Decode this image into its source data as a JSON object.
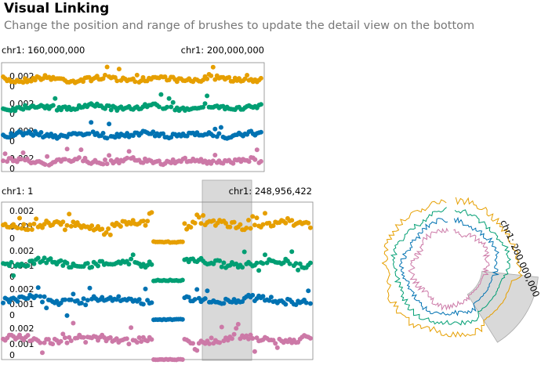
{
  "header": {
    "title": "Visual Linking",
    "subtitle": "Change the position and range of brushes to update the detail view on the bottom"
  },
  "colors": {
    "series": [
      "#e69f00",
      "#009e73",
      "#0072b2",
      "#cc79a7"
    ],
    "brush": "#cccccc",
    "axis": "#555555"
  },
  "chart_data": [
    {
      "type": "scatter",
      "view": "detail",
      "range_start_label": "chr1: 160,000,000",
      "range_end_label": "chr1: 200,000,000",
      "x_range": [
        160000000,
        200000000
      ],
      "rows": [
        {
          "color_index": 0,
          "ytick_labels": [
            "0.002",
            "0"
          ]
        },
        {
          "color_index": 1,
          "ytick_labels": [
            "0.002",
            "0"
          ]
        },
        {
          "color_index": 2,
          "ytick_labels": [
            "0.002",
            "0"
          ]
        },
        {
          "color_index": 3,
          "ytick_labels": [
            "0.002",
            "0"
          ]
        }
      ]
    },
    {
      "type": "scatter",
      "view": "overview",
      "range_start_label": "chr1: 1",
      "range_end_label": "chr1: 248,956,422",
      "x_range": [
        1,
        248956422
      ],
      "brush_range": [
        160000000,
        200000000
      ],
      "rows": [
        {
          "color_index": 0,
          "ytick_labels": [
            "0.002",
            "0.001",
            "0"
          ]
        },
        {
          "color_index": 1,
          "ytick_labels": [
            "0.002",
            "0.001",
            "0"
          ]
        },
        {
          "color_index": 2,
          "ytick_labels": [
            "0.002",
            "0.001",
            "0"
          ]
        },
        {
          "color_index": 3,
          "ytick_labels": [
            "0.002",
            "0.001",
            "0"
          ]
        }
      ]
    },
    {
      "type": "line",
      "view": "circular",
      "brush_label": "chr1: 200,000,000",
      "brush_range": [
        160000000,
        200000000
      ],
      "rings": [
        {
          "color_index": 0
        },
        {
          "color_index": 1
        },
        {
          "color_index": 2
        },
        {
          "color_index": 3
        }
      ]
    }
  ]
}
